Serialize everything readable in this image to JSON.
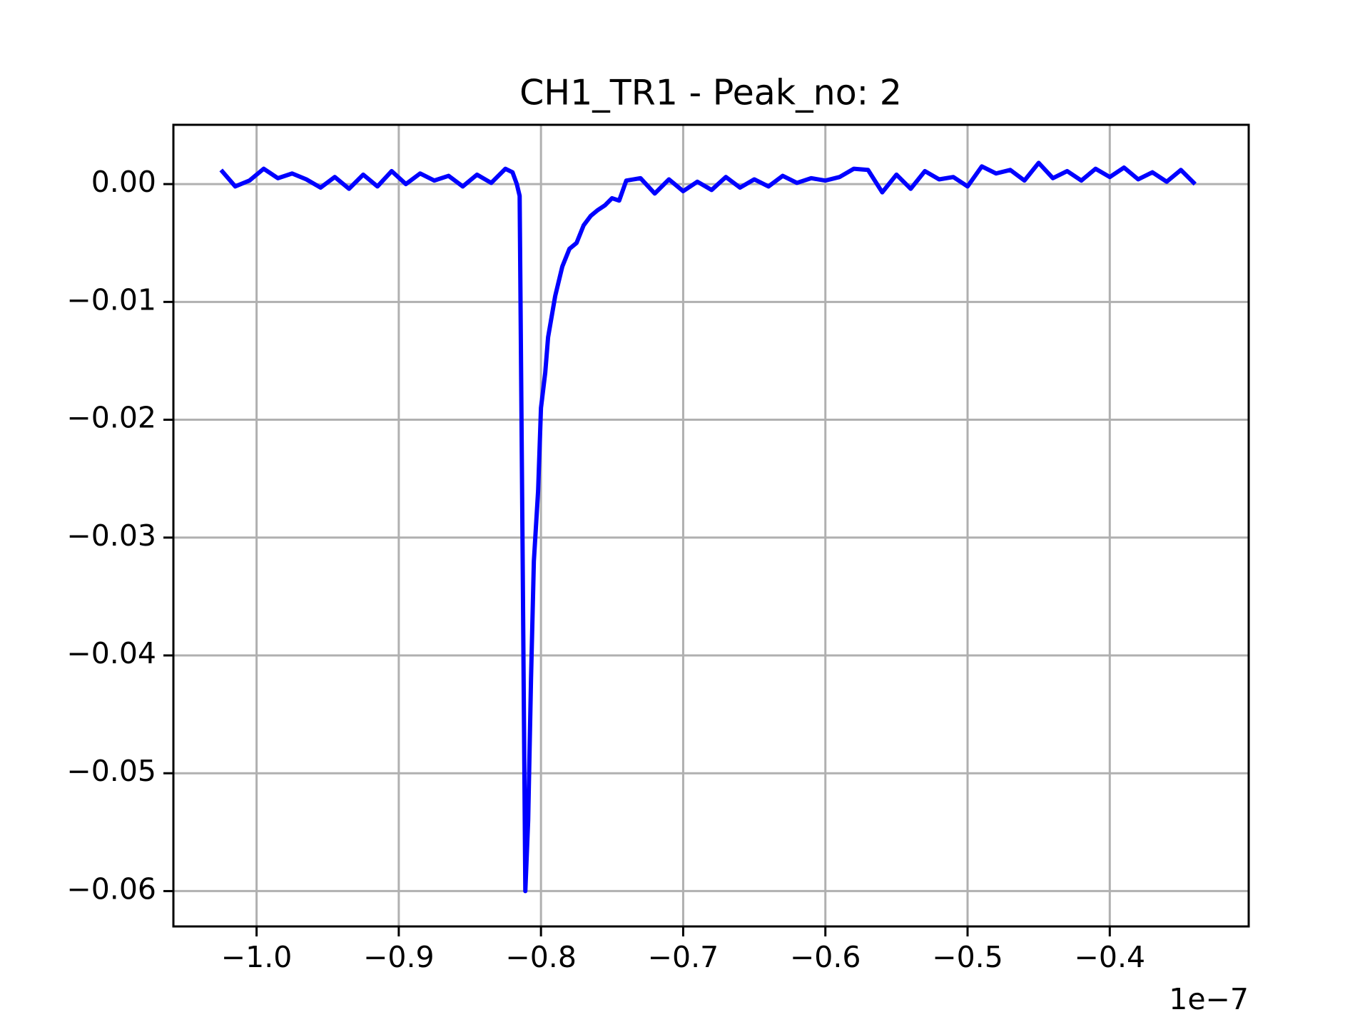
{
  "chart_data": {
    "type": "line",
    "title": "CH1_TR1 - Peak_no: 2",
    "x_offset_label": "1e−7",
    "xlim": [
      -1.0585,
      -0.3023
    ],
    "xticks": [
      {
        "value": -1.0,
        "label": "−1.0"
      },
      {
        "value": -0.9,
        "label": "−0.9"
      },
      {
        "value": -0.8,
        "label": "−0.8"
      },
      {
        "value": -0.7,
        "label": "−0.7"
      },
      {
        "value": -0.6,
        "label": "−0.6"
      },
      {
        "value": -0.5,
        "label": "−0.5"
      },
      {
        "value": -0.4,
        "label": "−0.4"
      }
    ],
    "ylim": [
      -0.063,
      0.00503
    ],
    "yticks": [
      {
        "value": 0.0,
        "label": "0.00"
      },
      {
        "value": -0.01,
        "label": "−0.01"
      },
      {
        "value": -0.02,
        "label": "−0.02"
      },
      {
        "value": -0.03,
        "label": "−0.03"
      },
      {
        "value": -0.04,
        "label": "−0.04"
      },
      {
        "value": -0.05,
        "label": "−0.05"
      },
      {
        "value": -0.06,
        "label": "−0.06"
      }
    ],
    "grid": true,
    "series": [
      {
        "color": "#0000ff",
        "x": [
          -1.025,
          -1.015,
          -1.005,
          -0.995,
          -0.985,
          -0.975,
          -0.965,
          -0.955,
          -0.945,
          -0.935,
          -0.925,
          -0.915,
          -0.905,
          -0.895,
          -0.885,
          -0.875,
          -0.865,
          -0.855,
          -0.845,
          -0.835,
          -0.825,
          -0.82,
          -0.817,
          -0.815,
          -0.813,
          -0.811,
          -0.809,
          -0.807,
          -0.805,
          -0.802,
          -0.8,
          -0.797,
          -0.795,
          -0.79,
          -0.785,
          -0.78,
          -0.775,
          -0.77,
          -0.765,
          -0.76,
          -0.755,
          -0.75,
          -0.745,
          -0.74,
          -0.73,
          -0.72,
          -0.71,
          -0.7,
          -0.69,
          -0.68,
          -0.67,
          -0.66,
          -0.65,
          -0.64,
          -0.63,
          -0.62,
          -0.61,
          -0.6,
          -0.59,
          -0.58,
          -0.57,
          -0.56,
          -0.55,
          -0.54,
          -0.53,
          -0.52,
          -0.51,
          -0.5,
          -0.49,
          -0.48,
          -0.47,
          -0.46,
          -0.45,
          -0.44,
          -0.43,
          -0.42,
          -0.41,
          -0.4,
          -0.39,
          -0.38,
          -0.37,
          -0.36,
          -0.35,
          -0.34
        ],
        "values": [
          0.0012,
          -0.0002,
          0.0003,
          0.0013,
          0.0005,
          0.0009,
          0.0004,
          -0.0003,
          0.0006,
          -0.0004,
          0.0008,
          -0.0002,
          0.0011,
          0.0,
          0.0009,
          0.0003,
          0.0007,
          -0.0002,
          0.0008,
          0.0001,
          0.0013,
          0.001,
          0.0,
          -0.001,
          -0.03,
          -0.06,
          -0.054,
          -0.042,
          -0.032,
          -0.026,
          -0.019,
          -0.016,
          -0.013,
          -0.0095,
          -0.007,
          -0.0055,
          -0.005,
          -0.0035,
          -0.0027,
          -0.0022,
          -0.0018,
          -0.0012,
          -0.0014,
          0.0003,
          0.0005,
          -0.0008,
          0.0004,
          -0.0006,
          0.0002,
          -0.0005,
          0.0006,
          -0.0003,
          0.0004,
          -0.0002,
          0.0007,
          0.0001,
          0.0005,
          0.0003,
          0.0006,
          0.0013,
          0.0012,
          -0.0007,
          0.0008,
          -0.0004,
          0.0011,
          0.0004,
          0.0006,
          -0.0002,
          0.0015,
          0.0009,
          0.0012,
          0.0003,
          0.0018,
          0.0005,
          0.0011,
          0.0003,
          0.0013,
          0.0006,
          0.0014,
          0.0004,
          0.001,
          0.0002,
          0.0012,
          0.0
        ]
      }
    ]
  }
}
